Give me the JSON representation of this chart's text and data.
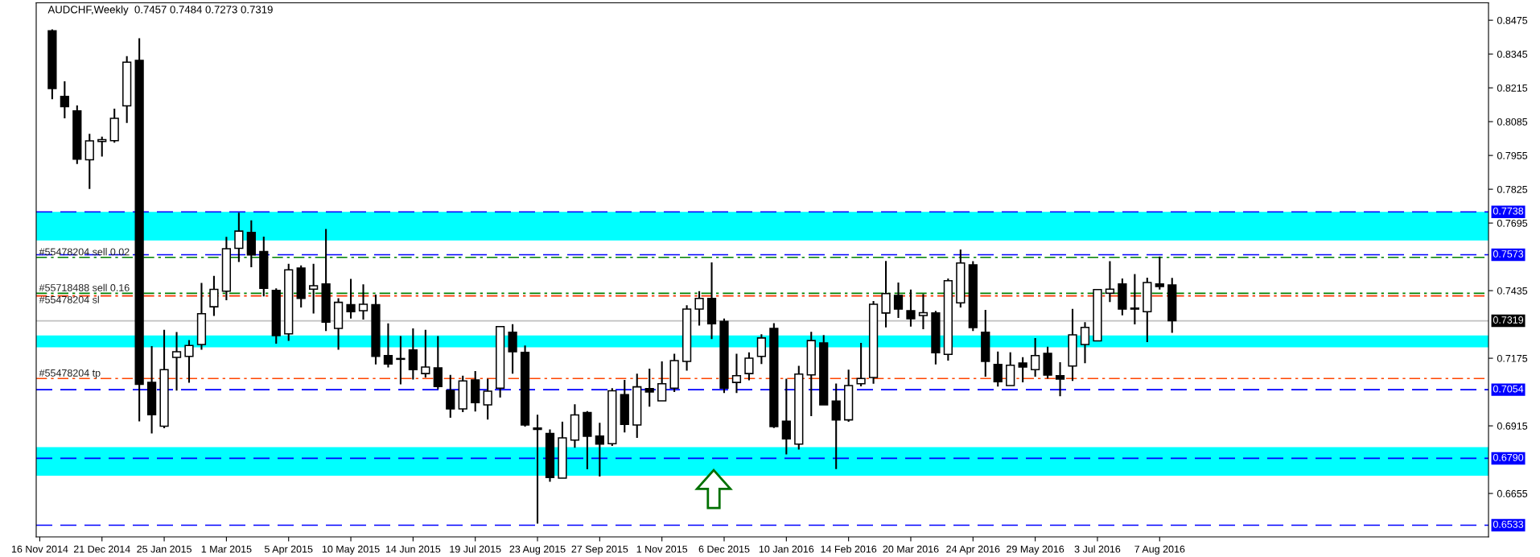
{
  "chart_data": {
    "type": "candlestick",
    "title": "AUDCHF,Weekly  0.7457 0.7484 0.7273 0.7319",
    "x": [
      "2014-11-23",
      "2014-11-30",
      "2014-12-07",
      "2014-12-14",
      "2014-12-21",
      "2014-12-28",
      "2015-01-04",
      "2015-01-11",
      "2015-01-18",
      "2015-01-25",
      "2015-02-01",
      "2015-02-08",
      "2015-02-15",
      "2015-02-22",
      "2015-03-01",
      "2015-03-08",
      "2015-03-15",
      "2015-03-22",
      "2015-03-29",
      "2015-04-05",
      "2015-04-12",
      "2015-04-19",
      "2015-04-26",
      "2015-05-03",
      "2015-05-10",
      "2015-05-17",
      "2015-05-24",
      "2015-05-31",
      "2015-06-07",
      "2015-06-14",
      "2015-06-21",
      "2015-06-28",
      "2015-07-05",
      "2015-07-12",
      "2015-07-19",
      "2015-07-26",
      "2015-08-02",
      "2015-08-09",
      "2015-08-16",
      "2015-08-23",
      "2015-08-30",
      "2015-09-06",
      "2015-09-13",
      "2015-09-20",
      "2015-09-27",
      "2015-10-04",
      "2015-10-11",
      "2015-10-18",
      "2015-10-25",
      "2015-11-01",
      "2015-11-08",
      "2015-11-15",
      "2015-11-22",
      "2015-11-29",
      "2015-12-06",
      "2015-12-13",
      "2015-12-20",
      "2015-12-27",
      "2016-01-03",
      "2016-01-10",
      "2016-01-17",
      "2016-01-24",
      "2016-01-31",
      "2016-02-07",
      "2016-02-14",
      "2016-02-21",
      "2016-02-28",
      "2016-03-06",
      "2016-03-13",
      "2016-03-20",
      "2016-03-27",
      "2016-04-03",
      "2016-04-10",
      "2016-04-17",
      "2016-04-24",
      "2016-05-01",
      "2016-05-08",
      "2016-05-15",
      "2016-05-22",
      "2016-05-29",
      "2016-06-05",
      "2016-06-12",
      "2016-06-19",
      "2016-06-26",
      "2016-07-03",
      "2016-07-10",
      "2016-07-17",
      "2016-07-24",
      "2016-07-31",
      "2016-08-07",
      "2016-08-14"
    ],
    "ohlc": [
      [
        0.8434,
        0.844,
        0.8171,
        0.8212
      ],
      [
        0.8182,
        0.824,
        0.8098,
        0.8143
      ],
      [
        0.8126,
        0.8147,
        0.7922,
        0.7941
      ],
      [
        0.7938,
        0.8038,
        0.7826,
        0.8011
      ],
      [
        0.8009,
        0.8027,
        0.7951,
        0.8016
      ],
      [
        0.8012,
        0.8135,
        0.8004,
        0.8098
      ],
      [
        0.8146,
        0.8337,
        0.808,
        0.8314
      ],
      [
        0.8321,
        0.8406,
        0.6932,
        0.7075
      ],
      [
        0.7082,
        0.7222,
        0.6886,
        0.6958
      ],
      [
        0.6914,
        0.7284,
        0.6906,
        0.7131
      ],
      [
        0.7178,
        0.7276,
        0.7051,
        0.72
      ],
      [
        0.7182,
        0.7245,
        0.7081,
        0.7224
      ],
      [
        0.7228,
        0.7465,
        0.7208,
        0.7346
      ],
      [
        0.7373,
        0.7492,
        0.7338,
        0.744
      ],
      [
        0.7433,
        0.7642,
        0.7398,
        0.7596
      ],
      [
        0.7598,
        0.7735,
        0.7545,
        0.7664
      ],
      [
        0.7659,
        0.7705,
        0.7525,
        0.7572
      ],
      [
        0.7585,
        0.7643,
        0.7413,
        0.7444
      ],
      [
        0.7436,
        0.7444,
        0.7231,
        0.7262
      ],
      [
        0.7269,
        0.7538,
        0.7242,
        0.7515
      ],
      [
        0.7522,
        0.7532,
        0.737,
        0.7405
      ],
      [
        0.7441,
        0.7538,
        0.7347,
        0.7454
      ],
      [
        0.7461,
        0.7672,
        0.728,
        0.7314
      ],
      [
        0.729,
        0.7406,
        0.7208,
        0.739
      ],
      [
        0.7381,
        0.748,
        0.7328,
        0.7354
      ],
      [
        0.7358,
        0.7459,
        0.7324,
        0.7383
      ],
      [
        0.7381,
        0.742,
        0.7151,
        0.7182
      ],
      [
        0.7185,
        0.7309,
        0.714,
        0.7153
      ],
      [
        0.7174,
        0.726,
        0.7075,
        0.7171
      ],
      [
        0.7207,
        0.729,
        0.7093,
        0.7131
      ],
      [
        0.7116,
        0.7284,
        0.7101,
        0.7141
      ],
      [
        0.7138,
        0.726,
        0.7056,
        0.7066
      ],
      [
        0.7051,
        0.7111,
        0.6946,
        0.698
      ],
      [
        0.698,
        0.7108,
        0.6968,
        0.7088
      ],
      [
        0.7092,
        0.7126,
        0.697,
        0.7004
      ],
      [
        0.6996,
        0.7096,
        0.6939,
        0.7048
      ],
      [
        0.706,
        0.7297,
        0.7024,
        0.7297
      ],
      [
        0.7275,
        0.7306,
        0.7116,
        0.72
      ],
      [
        0.7198,
        0.7224,
        0.6912,
        0.6918
      ],
      [
        0.6907,
        0.6958,
        0.6539,
        0.6901
      ],
      [
        0.6886,
        0.6901,
        0.67,
        0.6716
      ],
      [
        0.6714,
        0.6931,
        0.6714,
        0.6869
      ],
      [
        0.686,
        0.6998,
        0.6831,
        0.6957
      ],
      [
        0.6966,
        0.6972,
        0.6748,
        0.6875
      ],
      [
        0.6876,
        0.6927,
        0.672,
        0.6845
      ],
      [
        0.6846,
        0.706,
        0.6838,
        0.705
      ],
      [
        0.7035,
        0.7092,
        0.689,
        0.6921
      ],
      [
        0.6918,
        0.7116,
        0.6869,
        0.7065
      ],
      [
        0.7058,
        0.7135,
        0.6989,
        0.7045
      ],
      [
        0.7011,
        0.7163,
        0.7011,
        0.7077
      ],
      [
        0.706,
        0.7192,
        0.7045,
        0.7166
      ],
      [
        0.7163,
        0.7379,
        0.7127,
        0.7364
      ],
      [
        0.7364,
        0.7433,
        0.7301,
        0.7405
      ],
      [
        0.7405,
        0.7544,
        0.7249,
        0.7308
      ],
      [
        0.7317,
        0.7328,
        0.7041,
        0.706
      ],
      [
        0.7082,
        0.7192,
        0.7041,
        0.7108
      ],
      [
        0.7116,
        0.7198,
        0.709,
        0.7175
      ],
      [
        0.7182,
        0.7267,
        0.7153,
        0.7253
      ],
      [
        0.729,
        0.731,
        0.6907,
        0.6912
      ],
      [
        0.6933,
        0.7096,
        0.6805,
        0.6865
      ],
      [
        0.6845,
        0.7146,
        0.6824,
        0.7114
      ],
      [
        0.7111,
        0.7277,
        0.6952,
        0.7243
      ],
      [
        0.7234,
        0.7264,
        0.6996,
        0.6996
      ],
      [
        0.701,
        0.7078,
        0.6749,
        0.6938
      ],
      [
        0.6938,
        0.7131,
        0.6931,
        0.707
      ],
      [
        0.7077,
        0.7234,
        0.7067,
        0.7097
      ],
      [
        0.7101,
        0.7395,
        0.7077,
        0.7383
      ],
      [
        0.7349,
        0.7549,
        0.7294,
        0.7424
      ],
      [
        0.7417,
        0.7466,
        0.733,
        0.7364
      ],
      [
        0.7358,
        0.7439,
        0.7297,
        0.7327
      ],
      [
        0.7339,
        0.7422,
        0.7287,
        0.735
      ],
      [
        0.7349,
        0.7357,
        0.7151,
        0.7196
      ],
      [
        0.719,
        0.7482,
        0.7166,
        0.7473
      ],
      [
        0.7388,
        0.7593,
        0.737,
        0.7541
      ],
      [
        0.7534,
        0.7548,
        0.728,
        0.7293
      ],
      [
        0.7275,
        0.7361,
        0.7104,
        0.7163
      ],
      [
        0.7151,
        0.7201,
        0.7066,
        0.7085
      ],
      [
        0.707,
        0.7198,
        0.707,
        0.7148
      ],
      [
        0.7157,
        0.7179,
        0.7082,
        0.7141
      ],
      [
        0.7131,
        0.7253,
        0.7104,
        0.7185
      ],
      [
        0.7194,
        0.7219,
        0.7097,
        0.711
      ],
      [
        0.7108,
        0.716,
        0.7029,
        0.7095
      ],
      [
        0.7145,
        0.7365,
        0.7088,
        0.7265
      ],
      [
        0.7228,
        0.7314,
        0.7156,
        0.7294
      ],
      [
        0.7242,
        0.7439,
        0.7242,
        0.7439
      ],
      [
        0.7425,
        0.7548,
        0.7391,
        0.7441
      ],
      [
        0.7461,
        0.7482,
        0.734,
        0.7364
      ],
      [
        0.7368,
        0.7499,
        0.7305,
        0.7364
      ],
      [
        0.7354,
        0.7485,
        0.7237,
        0.7466
      ],
      [
        0.7461,
        0.7566,
        0.7439,
        0.7451
      ],
      [
        0.7457,
        0.7484,
        0.7273,
        0.7319
      ]
    ],
    "xlim": [
      "2014-11-14",
      "2017-02-08"
    ],
    "xticks": [
      {
        "value": "2014-11-16",
        "label": "16 Nov 2014"
      },
      {
        "value": "2014-12-21",
        "label": "21 Dec 2014"
      },
      {
        "value": "2015-01-25",
        "label": "25 Jan 2015"
      },
      {
        "value": "2015-03-01",
        "label": "1 Mar 2015"
      },
      {
        "value": "2015-04-05",
        "label": "5 Apr 2015"
      },
      {
        "value": "2015-05-10",
        "label": "10 May 2015"
      },
      {
        "value": "2015-06-14",
        "label": "14 Jun 2015"
      },
      {
        "value": "2015-07-19",
        "label": "19 Jul 2015"
      },
      {
        "value": "2015-08-23",
        "label": "23 Aug 2015"
      },
      {
        "value": "2015-09-27",
        "label": "27 Sep 2015"
      },
      {
        "value": "2015-11-01",
        "label": "1 Nov 2015"
      },
      {
        "value": "2015-12-06",
        "label": "6 Dec 2015"
      },
      {
        "value": "2016-01-10",
        "label": "10 Jan 2016"
      },
      {
        "value": "2016-02-14",
        "label": "14 Feb 2016"
      },
      {
        "value": "2016-03-20",
        "label": "20 Mar 2016"
      },
      {
        "value": "2016-04-24",
        "label": "24 Apr 2016"
      },
      {
        "value": "2016-05-29",
        "label": "29 May 2016"
      },
      {
        "value": "2016-07-03",
        "label": "3 Jul 2016"
      },
      {
        "value": "2016-08-07",
        "label": "7 Aug 2016"
      }
    ],
    "ylim": [
      0.6488,
      0.8542
    ],
    "yticks": [
      {
        "value": 0.8475,
        "label": "0.8475"
      },
      {
        "value": 0.8345,
        "label": "0.8345"
      },
      {
        "value": 0.8215,
        "label": "0.8215"
      },
      {
        "value": 0.8085,
        "label": "0.8085"
      },
      {
        "value": 0.7955,
        "label": "0.7955"
      },
      {
        "value": 0.7825,
        "label": "0.7825"
      },
      {
        "value": 0.7695,
        "label": "0.7695"
      },
      {
        "value": 0.7435,
        "label": "0.7435"
      },
      {
        "value": 0.7175,
        "label": "0.7175"
      },
      {
        "value": 0.6915,
        "label": "0.6915"
      },
      {
        "value": 0.6655,
        "label": "0.6655"
      }
    ],
    "grid": false,
    "legend": false,
    "ref_lines": [
      {
        "axis": "y",
        "value": 0.7738,
        "label": "0.7738",
        "color": "#0000ff",
        "line_style": "dashed"
      },
      {
        "axis": "y",
        "value": 0.7573,
        "label": "0.7573",
        "color": "#0000ff",
        "line_style": "dashed"
      },
      {
        "axis": "y",
        "value": 0.7054,
        "label": "0.7054",
        "color": "#0000ff",
        "line_style": "dashed"
      },
      {
        "axis": "y",
        "value": 0.679,
        "label": "0.6790",
        "color": "#0000ff",
        "line_style": "dashed"
      },
      {
        "axis": "y",
        "value": 0.6533,
        "label": "0.6533",
        "color": "#0000ff",
        "line_style": "dashed"
      },
      {
        "axis": "y",
        "value": 0.7319,
        "label": "0.7319",
        "color": "#c0c0c0",
        "line_style": "solid"
      },
      {
        "axis": "y",
        "value": 0.7563,
        "label": "#55478204 sell 0.02",
        "color": "#008000",
        "line_style": "dashdot"
      },
      {
        "axis": "y",
        "value": 0.7425,
        "label": "#55718488 sell 0.16",
        "color": "#008000",
        "line_style": "dashdot"
      },
      {
        "axis": "y",
        "value": 0.7415,
        "label": "#55478204 sl",
        "color": "#ff3300",
        "line_style": "dashdot"
      },
      {
        "axis": "y",
        "value": 0.7097,
        "label": "#55478204 tp",
        "color": "#ff4500",
        "line_style": "dashdot"
      }
    ],
    "bands": [
      {
        "axis": "y",
        "from": 0.7628,
        "to": 0.7738,
        "color": "#00ffff"
      },
      {
        "axis": "y",
        "from": 0.7217,
        "to": 0.7263,
        "color": "#00ffff"
      },
      {
        "axis": "y",
        "from": 0.6723,
        "to": 0.6833,
        "color": "#00ffff"
      }
    ]
  }
}
